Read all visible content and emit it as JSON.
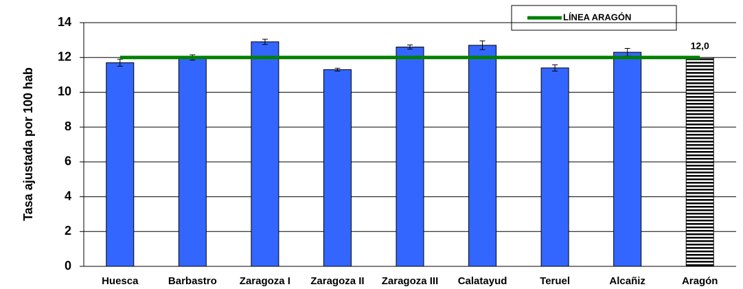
{
  "chart_data": {
    "type": "bar",
    "y_label": "Tasa ajustada por 100 hab",
    "categories": [
      "Huesca",
      "Barbastro",
      "Zaragoza I",
      "Zaragoza II",
      "Zaragoza III",
      "Calatayud",
      "Teruel",
      "Alcañiz",
      "Aragón"
    ],
    "values": [
      11.7,
      12.0,
      12.9,
      11.3,
      12.6,
      12.7,
      11.4,
      12.3,
      12.0
    ],
    "errors": [
      0.2,
      0.15,
      0.15,
      0.08,
      0.12,
      0.25,
      0.18,
      0.22,
      null
    ],
    "value_labels": [
      null,
      null,
      null,
      null,
      null,
      null,
      null,
      null,
      "12,0"
    ],
    "color": "#3366ff",
    "reference_line": {
      "name": "LÍNEA ARAGÓN",
      "value": 12,
      "color": "#008000"
    },
    "ylim": [
      0,
      14
    ],
    "yticks": [
      0,
      2,
      4,
      6,
      8,
      10,
      12,
      14
    ],
    "grid": true
  }
}
